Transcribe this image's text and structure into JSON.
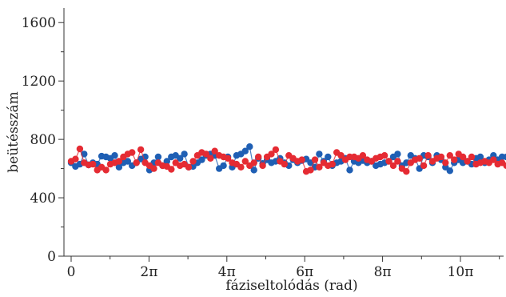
{
  "chart_data": {
    "type": "line",
    "title": "",
    "xlabel": "fáziseltolódás (rad)",
    "ylabel": "beütésszám",
    "xlim": [
      0,
      35.2
    ],
    "ylim": [
      0,
      1700
    ],
    "grid": false,
    "markers": true,
    "x_ticks": [
      {
        "value": 0,
        "label": "0"
      },
      {
        "value": 6.2832,
        "label": "2π"
      },
      {
        "value": 12.5664,
        "label": "4π"
      },
      {
        "value": 18.8496,
        "label": "6π"
      },
      {
        "value": 25.1327,
        "label": "8π"
      },
      {
        "value": 31.4159,
        "label": "10π"
      }
    ],
    "x_minor_ticks": [
      3.1416,
      9.4248,
      15.708,
      21.9911,
      28.2743,
      34.5575
    ],
    "y_ticks": [
      {
        "value": 0,
        "label": "0"
      },
      {
        "value": 400,
        "label": "400"
      },
      {
        "value": 800,
        "label": "800"
      },
      {
        "value": 1200,
        "label": "1200"
      },
      {
        "value": 1600,
        "label": "1600"
      }
    ],
    "y_minor_ticks": [
      200,
      600,
      1000,
      1400
    ],
    "series": [
      {
        "color": "#1f5fb4",
        "x": [
          0.0,
          0.351,
          0.703,
          1.054,
          1.405,
          1.756,
          2.108,
          2.459,
          2.81,
          3.162,
          3.513,
          3.864,
          4.216,
          4.567,
          4.918,
          5.27,
          5.621,
          5.972,
          6.324,
          6.675,
          7.026,
          7.377,
          7.729,
          8.08,
          8.431,
          8.783,
          9.134,
          9.485,
          9.837,
          10.188,
          10.539,
          10.891,
          11.242,
          11.593,
          11.944,
          12.296,
          12.647,
          12.998,
          13.35,
          13.701,
          14.052,
          14.404,
          14.755,
          15.106,
          15.458,
          15.809,
          16.16,
          16.511,
          16.863,
          17.214,
          17.565,
          17.917,
          18.268,
          18.619,
          18.971,
          19.322,
          19.673,
          20.025,
          20.376,
          20.727,
          21.078,
          21.43,
          21.781,
          22.132,
          22.484,
          22.835,
          23.186,
          23.538,
          23.889,
          24.24,
          24.592,
          24.943,
          25.294,
          25.645,
          25.997,
          26.348,
          26.699,
          27.051,
          27.402,
          27.753,
          28.105,
          28.456,
          28.807,
          29.159,
          29.51,
          29.861,
          30.212,
          30.564,
          30.915,
          31.266,
          31.618,
          31.969,
          32.32,
          32.672,
          33.023,
          33.374,
          33.726,
          34.077,
          34.428,
          34.779,
          35.131
        ],
        "y": [
          640,
          615,
          630,
          700,
          625,
          640,
          630,
          685,
          680,
          670,
          690,
          610,
          640,
          650,
          620,
          640,
          665,
          680,
          590,
          640,
          680,
          620,
          650,
          680,
          690,
          670,
          700,
          610,
          615,
          640,
          660,
          690,
          700,
          690,
          600,
          620,
          680,
          610,
          690,
          700,
          720,
          750,
          590,
          670,
          635,
          660,
          640,
          650,
          670,
          640,
          620,
          660,
          640,
          655,
          665,
          640,
          610,
          700,
          650,
          680,
          620,
          640,
          650,
          670,
          590,
          650,
          640,
          655,
          640,
          650,
          620,
          630,
          640,
          650,
          680,
          700,
          620,
          640,
          690,
          670,
          600,
          690,
          680,
          640,
          690,
          660,
          610,
          585,
          640,
          660,
          640,
          650,
          630,
          670,
          680,
          640,
          660,
          690,
          660,
          680,
          680
        ]
      },
      {
        "color": "#e52b33",
        "x": [
          0.0,
          0.351,
          0.703,
          1.054,
          1.405,
          1.756,
          2.108,
          2.459,
          2.81,
          3.162,
          3.513,
          3.864,
          4.216,
          4.567,
          4.918,
          5.27,
          5.621,
          5.972,
          6.324,
          6.675,
          7.026,
          7.377,
          7.729,
          8.08,
          8.431,
          8.783,
          9.134,
          9.485,
          9.837,
          10.188,
          10.539,
          10.891,
          11.242,
          11.593,
          11.944,
          12.296,
          12.647,
          12.998,
          13.35,
          13.701,
          14.052,
          14.404,
          14.755,
          15.106,
          15.458,
          15.809,
          16.16,
          16.511,
          16.863,
          17.214,
          17.565,
          17.917,
          18.268,
          18.619,
          18.971,
          19.322,
          19.673,
          20.025,
          20.376,
          20.727,
          21.078,
          21.43,
          21.781,
          22.132,
          22.484,
          22.835,
          23.186,
          23.538,
          23.889,
          24.24,
          24.592,
          24.943,
          25.294,
          25.645,
          25.997,
          26.348,
          26.699,
          27.051,
          27.402,
          27.753,
          28.105,
          28.456,
          28.807,
          29.159,
          29.51,
          29.861,
          30.212,
          30.564,
          30.915,
          31.266,
          31.618,
          31.969,
          32.32,
          32.672,
          33.023,
          33.374,
          33.726,
          34.077,
          34.428,
          34.779,
          35.131
        ],
        "y": [
          650,
          665,
          735,
          640,
          625,
          630,
          590,
          610,
          590,
          630,
          640,
          650,
          680,
          700,
          710,
          640,
          730,
          640,
          620,
          600,
          640,
          620,
          615,
          595,
          640,
          620,
          630,
          610,
          650,
          690,
          710,
          700,
          670,
          720,
          690,
          680,
          670,
          640,
          630,
          610,
          650,
          620,
          640,
          680,
          620,
          680,
          700,
          730,
          650,
          630,
          690,
          670,
          650,
          660,
          580,
          590,
          660,
          610,
          640,
          620,
          630,
          710,
          690,
          660,
          680,
          680,
          670,
          690,
          660,
          650,
          670,
          680,
          690,
          650,
          620,
          650,
          600,
          580,
          640,
          660,
          670,
          620,
          690,
          650,
          670,
          680,
          640,
          690,
          660,
          700,
          680,
          650,
          680,
          630,
          640,
          650,
          640,
          660,
          630,
          640,
          620
        ]
      }
    ]
  }
}
